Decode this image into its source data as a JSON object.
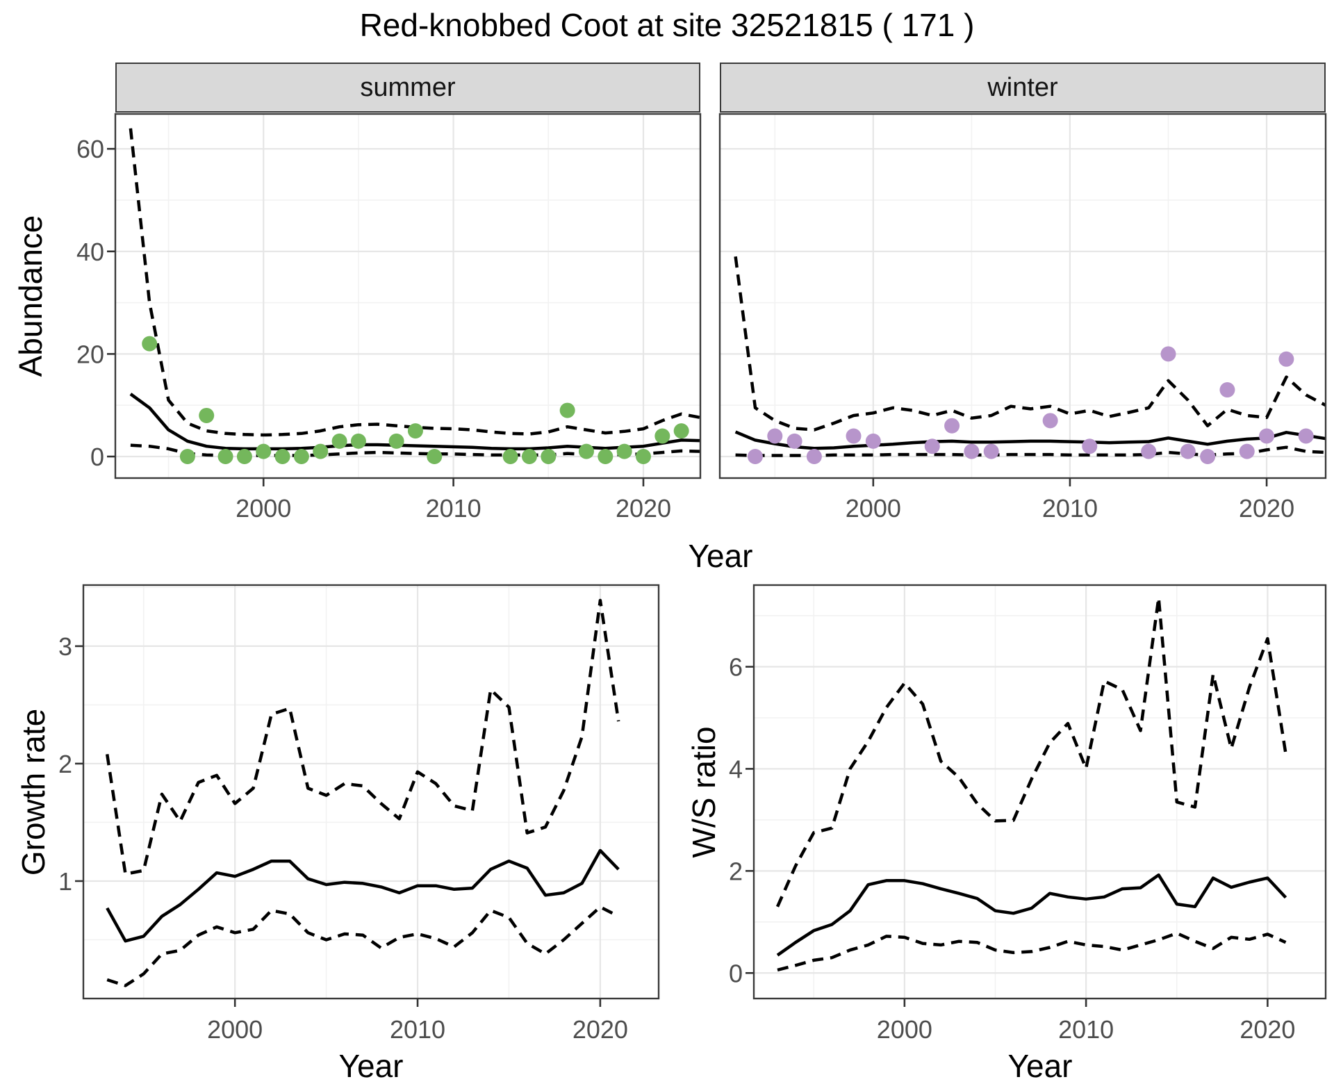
{
  "title": "Red-knobbed Coot at site 32521815 ( 171 )",
  "colors": {
    "summer_point": "#74b75c",
    "winter_point": "#b795cb",
    "line": "#000000",
    "strip_bg": "#d9d9d9",
    "panel_border": "#3a3a3a",
    "grid_major": "#e6e6e6",
    "grid_minor": "#f2f2f2",
    "tick_text": "#4d4d4d"
  },
  "chart_data": {
    "abundance": {
      "type": "scatter+line",
      "ylabel": "Abundance",
      "xlabel": "Year",
      "xticks": [
        2000,
        2010,
        2020
      ],
      "xticks_minor": [
        1995,
        2005,
        2015
      ],
      "yticks": [
        0,
        20,
        40,
        60
      ],
      "yticks_minor": [
        10,
        30,
        50
      ],
      "xlim": [
        1992.2,
        2023.0
      ],
      "ylim": [
        -4.2,
        66.8
      ],
      "years": [
        1993,
        1994,
        1995,
        1996,
        1997,
        1998,
        1999,
        2000,
        2001,
        2002,
        2003,
        2004,
        2005,
        2006,
        2007,
        2008,
        2009,
        2010,
        2011,
        2012,
        2013,
        2014,
        2015,
        2016,
        2017,
        2018,
        2019,
        2020,
        2021,
        2022,
        2023
      ],
      "facets": [
        {
          "label": "summer",
          "point_color": "#74b75c",
          "points": [
            [
              1994,
              22
            ],
            [
              1996,
              0
            ],
            [
              1997,
              8
            ],
            [
              1998,
              0
            ],
            [
              1999,
              0
            ],
            [
              2000,
              1
            ],
            [
              2001,
              0
            ],
            [
              2002,
              0
            ],
            [
              2003,
              1
            ],
            [
              2004,
              3
            ],
            [
              2005,
              3
            ],
            [
              2007,
              3
            ],
            [
              2008,
              5
            ],
            [
              2009,
              0
            ],
            [
              2013,
              0
            ],
            [
              2014,
              0
            ],
            [
              2015,
              0
            ],
            [
              2016,
              9
            ],
            [
              2017,
              1
            ],
            [
              2018,
              0
            ],
            [
              2019,
              1
            ],
            [
              2020,
              0
            ],
            [
              2021,
              4
            ],
            [
              2022,
              5
            ]
          ],
          "mean": [
            12.2,
            9.5,
            5.2,
            3.0,
            2.0,
            1.6,
            1.5,
            1.5,
            1.5,
            1.6,
            1.8,
            2.1,
            2.3,
            2.3,
            2.2,
            2.1,
            2.0,
            1.9,
            1.8,
            1.6,
            1.5,
            1.5,
            1.7,
            2.0,
            1.8,
            1.6,
            1.8,
            2.0,
            2.6,
            3.2,
            3.1
          ],
          "ci_upper": [
            64,
            30,
            11,
            6.5,
            5.0,
            4.5,
            4.3,
            4.2,
            4.3,
            4.5,
            5.0,
            5.8,
            6.2,
            6.3,
            6.0,
            5.7,
            5.5,
            5.4,
            5.2,
            4.8,
            4.5,
            4.4,
            4.8,
            5.8,
            5.2,
            4.6,
            4.9,
            5.4,
            7.0,
            8.3,
            7.6
          ],
          "ci_lower": [
            2.2,
            2.0,
            1.5,
            0.6,
            0.3,
            0.2,
            0.2,
            0.2,
            0.2,
            0.2,
            0.3,
            0.5,
            0.7,
            0.8,
            0.7,
            0.6,
            0.5,
            0.5,
            0.4,
            0.3,
            0.3,
            0.3,
            0.3,
            0.6,
            0.4,
            0.3,
            0.4,
            0.5,
            0.8,
            1.1,
            1.0
          ]
        },
        {
          "label": "winter",
          "point_color": "#b795cb",
          "points": [
            [
              1994,
              0
            ],
            [
              1995,
              4
            ],
            [
              1996,
              3
            ],
            [
              1997,
              0
            ],
            [
              1999,
              4
            ],
            [
              2000,
              3
            ],
            [
              2003,
              2
            ],
            [
              2004,
              6
            ],
            [
              2005,
              1
            ],
            [
              2006,
              1
            ],
            [
              2009,
              7
            ],
            [
              2011,
              2
            ],
            [
              2014,
              1
            ],
            [
              2015,
              20
            ],
            [
              2016,
              1
            ],
            [
              2017,
              0
            ],
            [
              2018,
              13
            ],
            [
              2019,
              1
            ],
            [
              2020,
              4
            ],
            [
              2021,
              19
            ],
            [
              2022,
              4
            ]
          ],
          "mean": [
            4.8,
            3.2,
            2.5,
            1.9,
            1.6,
            1.7,
            2.0,
            2.2,
            2.4,
            2.7,
            2.9,
            3.0,
            2.8,
            2.8,
            2.9,
            3.0,
            3.0,
            2.9,
            2.8,
            2.7,
            2.8,
            2.9,
            3.6,
            3.0,
            2.4,
            3.0,
            3.4,
            3.6,
            4.7,
            4.1,
            3.5
          ],
          "ci_upper": [
            39,
            9.5,
            7.0,
            5.5,
            5.2,
            6.5,
            8.0,
            8.5,
            9.5,
            9.0,
            8.0,
            9.0,
            7.5,
            8.0,
            9.8,
            9.3,
            9.8,
            8.3,
            9.0,
            7.8,
            8.6,
            9.5,
            14.8,
            11.0,
            6.0,
            9.2,
            8.0,
            7.6,
            15.5,
            12.0,
            10.0
          ],
          "ci_lower": [
            0.3,
            0.2,
            0.2,
            0.2,
            0.2,
            0.3,
            0.3,
            0.3,
            0.4,
            0.4,
            0.4,
            0.4,
            0.3,
            0.3,
            0.4,
            0.4,
            0.4,
            0.3,
            0.3,
            0.3,
            0.3,
            0.4,
            0.8,
            0.5,
            0.3,
            0.5,
            0.6,
            1.3,
            1.8,
            1.0,
            0.8
          ]
        }
      ]
    },
    "growth_rate": {
      "type": "line",
      "ylabel": "Growth rate",
      "xlabel": "Year",
      "xticks": [
        2000,
        2010,
        2020
      ],
      "xticks_minor": [
        1995,
        2005,
        2015
      ],
      "yticks": [
        1,
        2,
        3
      ],
      "yticks_minor": [
        0.5,
        1.5,
        2.5,
        3.5
      ],
      "xlim": [
        1991.7,
        2023.2
      ],
      "ylim": [
        0.0,
        3.52
      ],
      "years": [
        1993,
        1994,
        1995,
        1996,
        1997,
        1998,
        1999,
        2000,
        2001,
        2002,
        2003,
        2004,
        2005,
        2006,
        2007,
        2008,
        2009,
        2010,
        2011,
        2012,
        2013,
        2014,
        2015,
        2016,
        2017,
        2018,
        2019,
        2020,
        2021
      ],
      "mean": [
        0.77,
        0.49,
        0.53,
        0.7,
        0.8,
        0.93,
        1.07,
        1.04,
        1.1,
        1.17,
        1.17,
        1.02,
        0.97,
        0.99,
        0.98,
        0.95,
        0.9,
        0.96,
        0.96,
        0.93,
        0.94,
        1.1,
        1.17,
        1.11,
        0.88,
        0.9,
        0.98,
        1.26,
        1.1
      ],
      "ci_upper": [
        2.08,
        1.06,
        1.09,
        1.74,
        1.51,
        1.84,
        1.9,
        1.66,
        1.79,
        2.42,
        2.47,
        1.79,
        1.73,
        1.83,
        1.81,
        1.66,
        1.53,
        1.93,
        1.83,
        1.64,
        1.6,
        2.63,
        2.48,
        1.41,
        1.46,
        1.77,
        2.23,
        3.39,
        2.36
      ],
      "ci_lower": [
        0.16,
        0.11,
        0.21,
        0.38,
        0.41,
        0.54,
        0.61,
        0.56,
        0.59,
        0.75,
        0.72,
        0.56,
        0.5,
        0.55,
        0.54,
        0.43,
        0.52,
        0.55,
        0.51,
        0.44,
        0.56,
        0.75,
        0.69,
        0.47,
        0.38,
        0.5,
        0.64,
        0.78,
        0.7
      ]
    },
    "ws_ratio": {
      "type": "line",
      "ylabel": "W/S ratio",
      "xlabel": "Year",
      "xticks": [
        2000,
        2010,
        2020
      ],
      "xticks_minor": [
        1995,
        2005,
        2015
      ],
      "yticks": [
        0,
        2,
        4,
        6
      ],
      "yticks_minor": [
        1,
        3,
        5,
        7
      ],
      "xlim": [
        1991.7,
        2023.2
      ],
      "ylim": [
        -0.5,
        7.6
      ],
      "years": [
        1993,
        1994,
        1995,
        1996,
        1997,
        1998,
        1999,
        2000,
        2001,
        2002,
        2003,
        2004,
        2005,
        2006,
        2007,
        2008,
        2009,
        2010,
        2011,
        2012,
        2013,
        2014,
        2015,
        2016,
        2017,
        2018,
        2019,
        2020,
        2021
      ],
      "mean": [
        0.35,
        0.6,
        0.83,
        0.95,
        1.22,
        1.73,
        1.81,
        1.81,
        1.75,
        1.65,
        1.56,
        1.46,
        1.22,
        1.17,
        1.27,
        1.56,
        1.49,
        1.45,
        1.49,
        1.65,
        1.67,
        1.92,
        1.35,
        1.3,
        1.86,
        1.68,
        1.78,
        1.86,
        1.48
      ],
      "ci_upper": [
        1.3,
        2.1,
        2.75,
        2.84,
        4.0,
        4.54,
        5.2,
        5.68,
        5.27,
        4.15,
        3.83,
        3.32,
        2.98,
        2.99,
        3.8,
        4.51,
        4.89,
        4.01,
        5.72,
        5.55,
        4.75,
        7.35,
        3.35,
        3.25,
        5.85,
        4.4,
        5.6,
        6.55,
        4.3
      ],
      "ci_lower": [
        0.06,
        0.15,
        0.25,
        0.3,
        0.45,
        0.55,
        0.72,
        0.7,
        0.58,
        0.55,
        0.62,
        0.6,
        0.45,
        0.4,
        0.42,
        0.5,
        0.62,
        0.55,
        0.52,
        0.45,
        0.55,
        0.65,
        0.78,
        0.62,
        0.48,
        0.7,
        0.66,
        0.76,
        0.6
      ]
    }
  }
}
